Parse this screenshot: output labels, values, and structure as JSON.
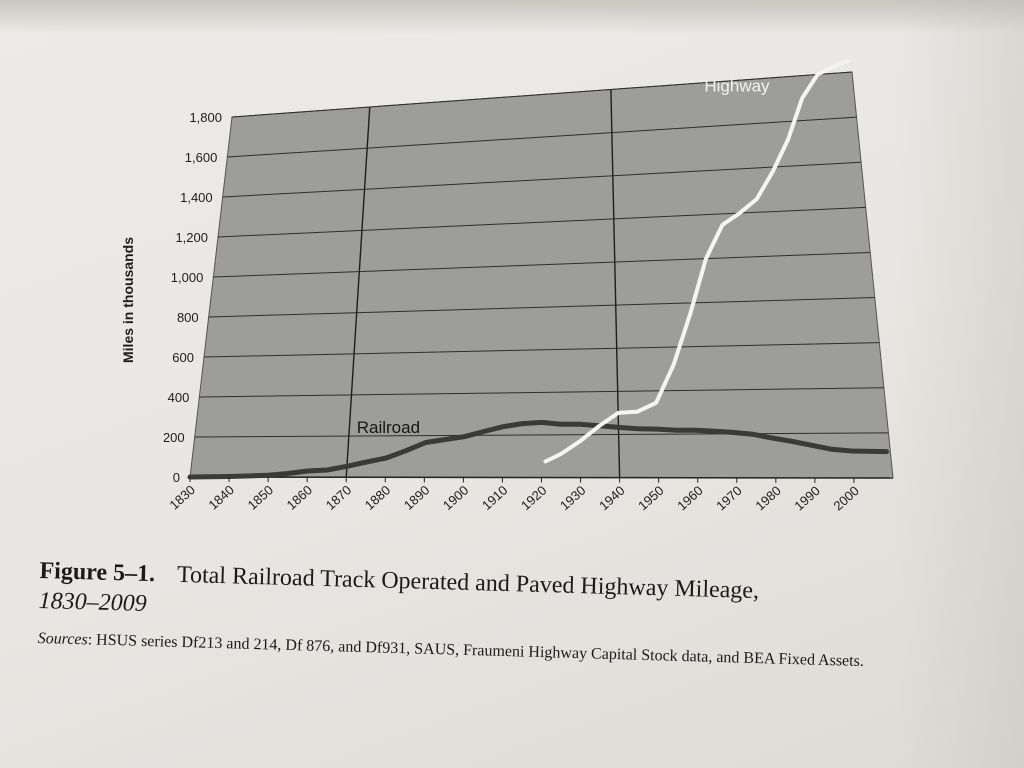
{
  "figure": {
    "number": "Figure 5–1.",
    "title": "Total Railroad Track Operated and Paved Highway Mileage,",
    "years": "1830–2009",
    "sources_label": "Sources",
    "sources_text": ": HSUS series Df213 and 214, Df 876, and Df931, SAUS, Fraumeni Highway Capital Stock data, and BEA Fixed Assets."
  },
  "colors": {
    "plot_background": "#9d9d9b",
    "railroad": "#3a3a3a",
    "highway": "#f4f4f2",
    "gridline": "#2e2e2e"
  },
  "chart_data": {
    "type": "line",
    "ylabel": "Miles in thousands",
    "xlabel": "",
    "ylim": [
      0,
      1800
    ],
    "xlim": [
      1830,
      2010
    ],
    "y_ticks": [
      "0",
      "200",
      "400",
      "600",
      "800",
      "1,000",
      "1,200",
      "1,400",
      "1,600",
      "1,800"
    ],
    "x_ticks": [
      "1830",
      "1840",
      "1850",
      "1860",
      "1870",
      "1880",
      "1890",
      "1900",
      "1910",
      "1920",
      "1930",
      "1940",
      "1950",
      "1960",
      "1970",
      "1980",
      "1990",
      "2000"
    ],
    "grid": true,
    "vertical_reference_lines": [
      1870,
      1940
    ],
    "series": [
      {
        "name": "Railroad",
        "x": [
          1830,
          1840,
          1850,
          1855,
          1860,
          1865,
          1870,
          1875,
          1880,
          1885,
          1890,
          1895,
          1900,
          1905,
          1910,
          1915,
          1920,
          1925,
          1930,
          1935,
          1940,
          1945,
          1950,
          1955,
          1960,
          1965,
          1970,
          1975,
          1980,
          1985,
          1990,
          1995,
          2000,
          2005,
          2009
        ],
        "values": [
          0,
          3,
          9,
          18,
          30,
          35,
          53,
          74,
          93,
          128,
          167,
          181,
          194,
          218,
          240,
          254,
          259,
          250,
          249,
          241,
          233,
          226,
          224,
          218,
          217,
          212,
          206,
          197,
          179,
          164,
          146,
          128,
          120,
          118,
          117
        ]
      },
      {
        "name": "Highway",
        "x": [
          1921,
          1925,
          1930,
          1935,
          1940,
          1945,
          1950,
          1955,
          1960,
          1965,
          1970,
          1975,
          1980,
          1985,
          1990,
          1995,
          2000,
          2005,
          2009
        ],
        "values": [
          75,
          110,
          170,
          240,
          300,
          305,
          345,
          520,
          750,
          1000,
          1150,
          1200,
          1260,
          1380,
          1520,
          1700,
          1800,
          1830,
          1850
        ]
      }
    ]
  }
}
